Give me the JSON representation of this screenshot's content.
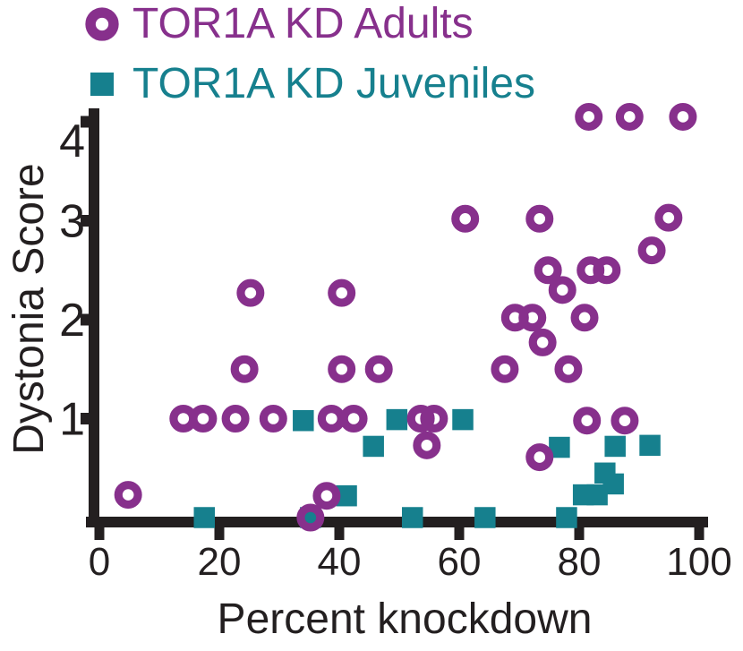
{
  "legend": {
    "items": [
      {
        "label": "TOR1A KD Adults",
        "marker": "open-circle",
        "color": "#87308C"
      },
      {
        "label": "TOR1A KD Juveniles",
        "marker": "filled-square",
        "color": "#16808E"
      }
    ]
  },
  "chart_data": {
    "type": "scatter",
    "title": "",
    "xlabel": "Percent knockdown",
    "ylabel": "Dystonia Score",
    "xlim": [
      0,
      100
    ],
    "ylim": [
      0,
      4.15
    ],
    "x_ticks": [
      0,
      20,
      40,
      60,
      80,
      100
    ],
    "y_ticks": [
      1,
      2,
      3,
      4
    ],
    "grid": false,
    "legend_position": "top-left",
    "series": [
      {
        "name": "TOR1A KD Adults",
        "marker": "open-circle",
        "color": "#87308C",
        "points": [
          [
            4.8,
            0.23
          ],
          [
            14.0,
            1.0
          ],
          [
            17.3,
            1.0
          ],
          [
            22.7,
            1.0
          ],
          [
            24.2,
            1.5
          ],
          [
            25.2,
            2.27
          ],
          [
            29.0,
            1.0
          ],
          [
            35.2,
            0.0
          ],
          [
            37.9,
            0.22
          ],
          [
            38.7,
            1.0
          ],
          [
            40.4,
            1.5
          ],
          [
            40.4,
            2.27
          ],
          [
            42.4,
            1.0
          ],
          [
            46.6,
            1.5
          ],
          [
            53.6,
            1.0
          ],
          [
            54.6,
            0.73
          ],
          [
            55.8,
            1.0
          ],
          [
            61.0,
            3.02
          ],
          [
            67.6,
            1.5
          ],
          [
            69.3,
            2.02
          ],
          [
            72.2,
            2.02
          ],
          [
            73.4,
            0.61
          ],
          [
            73.4,
            3.02
          ],
          [
            73.9,
            1.77
          ],
          [
            74.8,
            2.5
          ],
          [
            77.2,
            2.3
          ],
          [
            78.2,
            1.5
          ],
          [
            80.9,
            2.02
          ],
          [
            81.3,
            0.98
          ],
          [
            81.6,
            4.05
          ],
          [
            81.9,
            2.5
          ],
          [
            84.6,
            2.5
          ],
          [
            87.6,
            0.98
          ],
          [
            88.4,
            4.05
          ],
          [
            92.1,
            2.7
          ],
          [
            94.9,
            3.03
          ],
          [
            97.3,
            4.05
          ]
        ]
      },
      {
        "name": "TOR1A KD Juveniles",
        "marker": "filled-square",
        "color": "#16808E",
        "points": [
          [
            17.5,
            0.0
          ],
          [
            34.0,
            0.98
          ],
          [
            35.2,
            0.0
          ],
          [
            41.2,
            0.22
          ],
          [
            45.7,
            0.72
          ],
          [
            49.6,
            0.99
          ],
          [
            52.2,
            0.0
          ],
          [
            60.6,
            0.99
          ],
          [
            64.3,
            0.0
          ],
          [
            76.7,
            0.71
          ],
          [
            77.9,
            0.0
          ],
          [
            80.7,
            0.23
          ],
          [
            83.0,
            0.23
          ],
          [
            84.3,
            0.45
          ],
          [
            85.7,
            0.34
          ],
          [
            86.0,
            0.72
          ],
          [
            91.8,
            0.73
          ]
        ]
      }
    ]
  },
  "colors": {
    "adults": "#87308C",
    "juveniles": "#16808E",
    "axis": "#231F20",
    "background": "#FFFFFF"
  }
}
